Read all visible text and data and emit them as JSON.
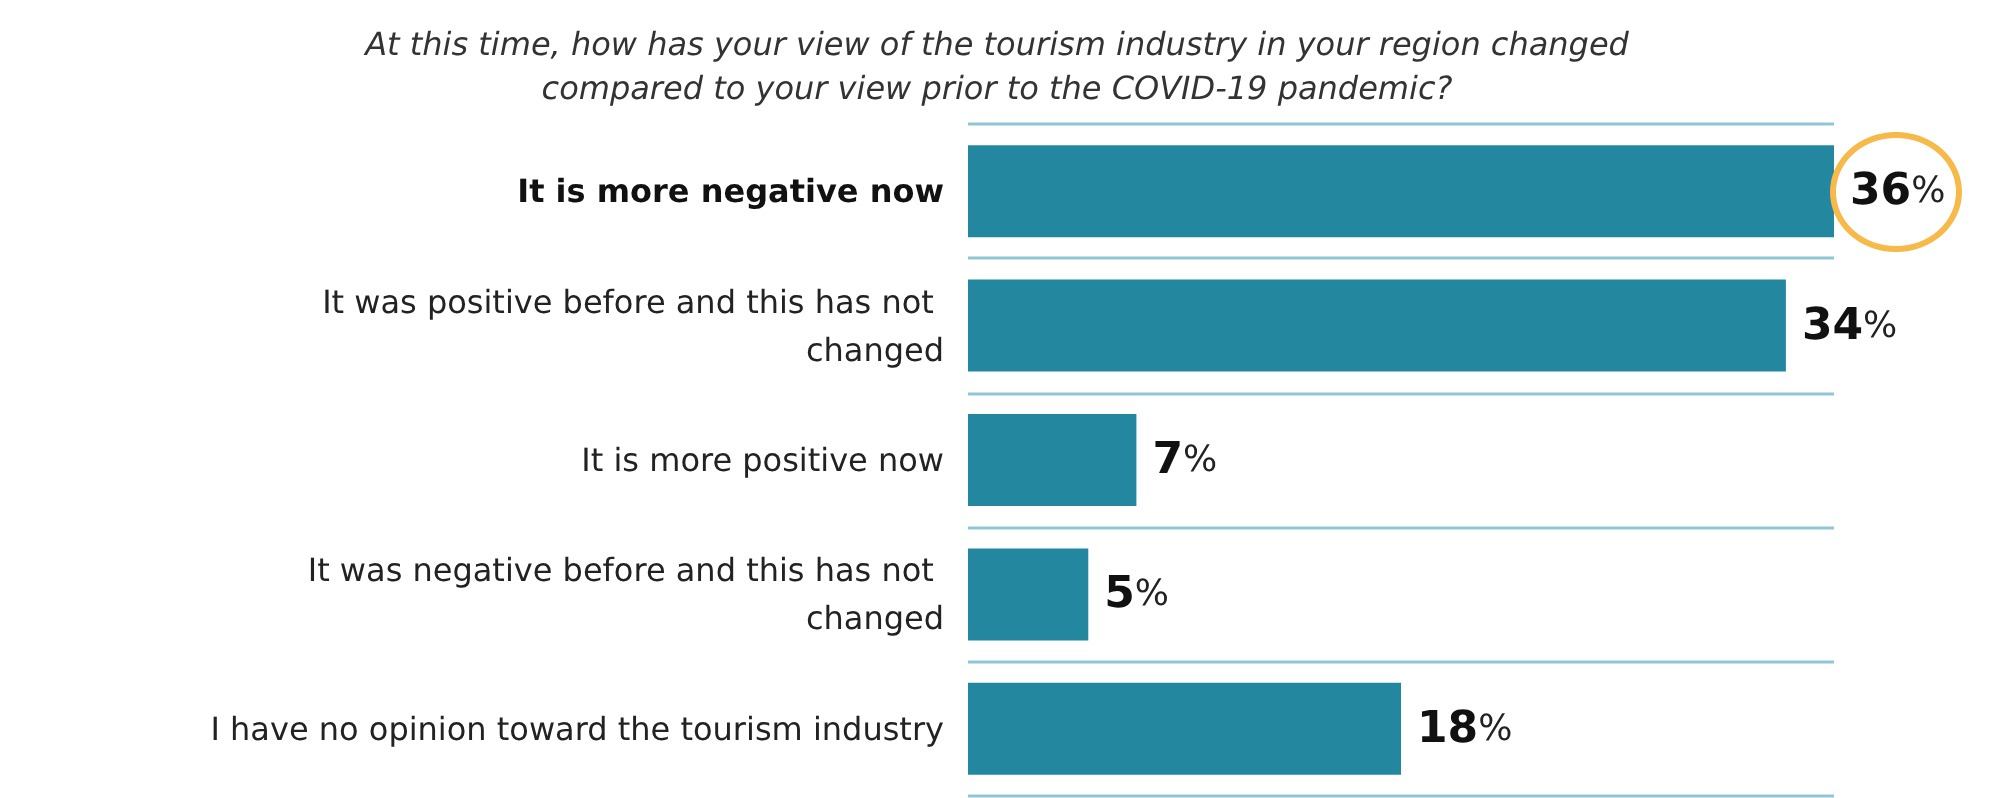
{
  "chart_data": {
    "type": "bar",
    "orientation": "horizontal",
    "title": "At this time, how has your view of the tourism industry in your region changed\ncompared to your view prior to the COVID-19 pandemic?",
    "categories": [
      "It is more negative now",
      "It was positive before and this has not changed",
      "It is more positive now",
      "It was negative before and this has not changed",
      "I have no opinion toward the tourism industry"
    ],
    "values": [
      36,
      34,
      7,
      5,
      18
    ],
    "color": "#23879f",
    "value_labels": [
      "36%",
      "34%",
      "7%",
      "5%",
      "18%"
    ],
    "grid": "y"
  }
}
